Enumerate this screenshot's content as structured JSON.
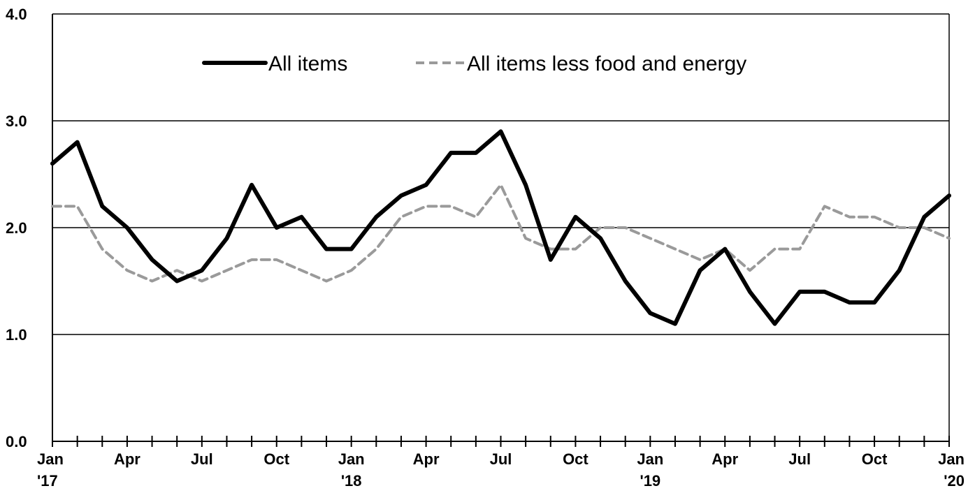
{
  "chart_data": {
    "type": "line",
    "title": "",
    "ylabel": "",
    "ylim": [
      0,
      4
    ],
    "yticks": [
      "0.0",
      "1.0",
      "2.0",
      "3.0",
      "4.0"
    ],
    "grid": "horizontal",
    "legend": "top-center",
    "x_tick_labels": [
      {
        "month": "Jan",
        "year": "'17"
      },
      {
        "month": "Apr",
        "year": ""
      },
      {
        "month": "Jul",
        "year": ""
      },
      {
        "month": "Oct",
        "year": ""
      },
      {
        "month": "Jan",
        "year": "'18"
      },
      {
        "month": "Apr",
        "year": ""
      },
      {
        "month": "Jul",
        "year": ""
      },
      {
        "month": "Oct",
        "year": ""
      },
      {
        "month": "Jan",
        "year": "'19"
      },
      {
        "month": "Apr",
        "year": ""
      },
      {
        "month": "Jul",
        "year": ""
      },
      {
        "month": "Oct",
        "year": ""
      },
      {
        "month": "Jan",
        "year": "'20"
      }
    ],
    "x": [
      "2017-01",
      "2017-02",
      "2017-03",
      "2017-04",
      "2017-05",
      "2017-06",
      "2017-07",
      "2017-08",
      "2017-09",
      "2017-10",
      "2017-11",
      "2017-12",
      "2018-01",
      "2018-02",
      "2018-03",
      "2018-04",
      "2018-05",
      "2018-06",
      "2018-07",
      "2018-08",
      "2018-09",
      "2018-10",
      "2018-11",
      "2018-12",
      "2019-01",
      "2019-02",
      "2019-03",
      "2019-04",
      "2019-05",
      "2019-06",
      "2019-07",
      "2019-08",
      "2019-09",
      "2019-10",
      "2019-11",
      "2019-12",
      "2020-01"
    ],
    "series": [
      {
        "name": "All items",
        "color": "#000000",
        "style": "solid",
        "values": [
          2.6,
          2.8,
          2.2,
          2.0,
          1.7,
          1.5,
          1.6,
          1.9,
          2.4,
          2.0,
          2.1,
          1.8,
          1.8,
          2.1,
          2.3,
          2.4,
          2.7,
          2.7,
          2.9,
          2.4,
          1.7,
          2.1,
          1.9,
          1.5,
          1.2,
          1.1,
          1.6,
          1.8,
          1.4,
          1.1,
          1.4,
          1.4,
          1.3,
          1.3,
          1.6,
          2.1,
          2.3
        ]
      },
      {
        "name": "All items less food and energy",
        "color": "#9a9a9a",
        "style": "dashed",
        "values": [
          2.2,
          2.2,
          1.8,
          1.6,
          1.5,
          1.6,
          1.5,
          1.6,
          1.7,
          1.7,
          1.6,
          1.5,
          1.6,
          1.8,
          2.1,
          2.2,
          2.2,
          2.1,
          2.4,
          1.9,
          1.8,
          1.8,
          2.0,
          2.0,
          1.9,
          1.8,
          1.7,
          1.8,
          1.6,
          1.8,
          1.8,
          2.2,
          2.1,
          2.1,
          2.0,
          2.0,
          1.9
        ]
      }
    ]
  }
}
